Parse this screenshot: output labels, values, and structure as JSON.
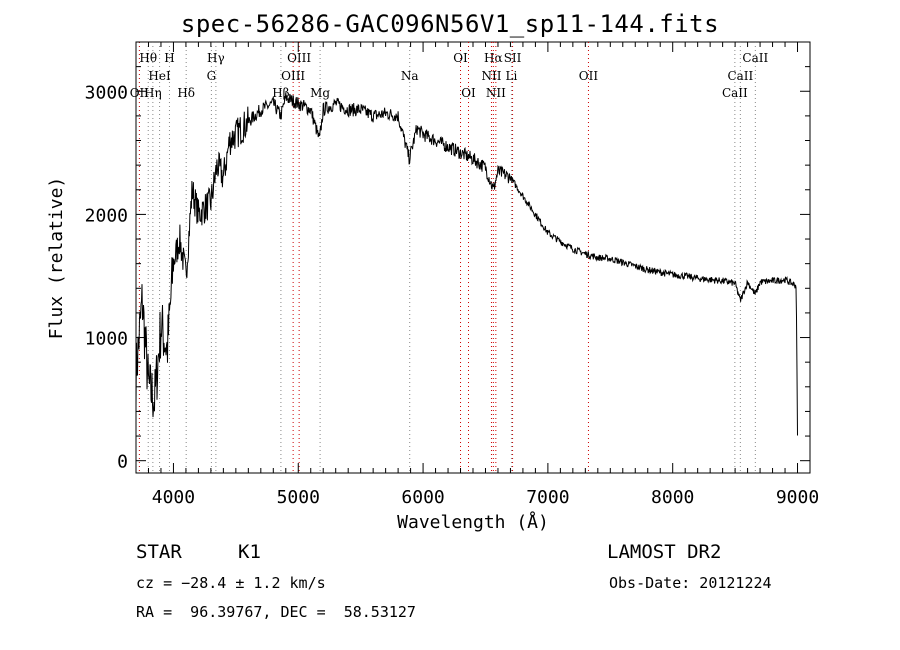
{
  "title": "spec-56286-GAC096N56V1_sp11-144.fits",
  "info": {
    "obj_class": "STAR",
    "subclass": "K1",
    "survey": "LAMOST DR2",
    "cz": "cz = −28.4 ± 1.2 km/s",
    "obs_date": "Obs-Date: 20121224",
    "coords": "RA =  96.39767, DEC =  58.53127"
  },
  "chart_data": {
    "type": "line",
    "title": "spec-56286-GAC096N56V1_sp11-144.fits",
    "xlabel": "Wavelength (Å)",
    "ylabel": "Flux (relative)",
    "xlim": [
      3700,
      9100
    ],
    "ylim": [
      -100,
      3400
    ],
    "x_ticks": [
      4000,
      5000,
      6000,
      7000,
      8000,
      9000
    ],
    "y_ticks": [
      0,
      1000,
      2000,
      3000
    ],
    "grid": false,
    "legend": "none",
    "series": [
      {
        "x": [
          3700,
          3750,
          3800,
          3850,
          3900,
          3950,
          4000,
          4050,
          4100,
          4150,
          4200,
          4250,
          4300,
          4350,
          4400,
          4450,
          4500,
          4600,
          4700,
          4800,
          4860,
          4900,
          5000,
          5100,
          5170,
          5200,
          5300,
          5400,
          5500,
          5600,
          5700,
          5800,
          5890,
          5950,
          6000,
          6100,
          6200,
          6300,
          6400,
          6500,
          6563,
          6600,
          6700,
          6800,
          6900,
          7000,
          7100,
          7200,
          7300,
          7400,
          7500,
          7600,
          7700,
          7800,
          7900,
          8000,
          8100,
          8200,
          8300,
          8400,
          8500,
          8542,
          8600,
          8662,
          8700,
          8800,
          8900,
          8990,
          9000
        ],
        "y": [
          700,
          1300,
          600,
          500,
          1100,
          900,
          1600,
          1800,
          1500,
          2200,
          2000,
          2050,
          2100,
          2400,
          2300,
          2600,
          2650,
          2750,
          2850,
          2900,
          2800,
          2950,
          2900,
          2850,
          2600,
          2850,
          2900,
          2850,
          2850,
          2800,
          2820,
          2800,
          2450,
          2700,
          2650,
          2600,
          2550,
          2500,
          2450,
          2380,
          2200,
          2350,
          2300,
          2150,
          2000,
          1850,
          1780,
          1720,
          1680,
          1650,
          1640,
          1610,
          1580,
          1550,
          1530,
          1510,
          1500,
          1480,
          1470,
          1460,
          1440,
          1300,
          1450,
          1350,
          1450,
          1460,
          1470,
          1420,
          200
        ]
      }
    ],
    "lines": [
      {
        "label": "Hθ",
        "wave": 3798,
        "row": 0,
        "color": "#888888"
      },
      {
        "label": "H",
        "wave": 3968,
        "row": 0,
        "color": "#888888"
      },
      {
        "label": "Hγ",
        "wave": 4340,
        "row": 0,
        "color": "#888888"
      },
      {
        "label": "OIII",
        "wave": 5007,
        "row": 0,
        "color": "#cc0000"
      },
      {
        "label": "OI",
        "wave": 6300,
        "row": 0,
        "color": "#cc0000"
      },
      {
        "label": "Hα",
        "wave": 6563,
        "row": 0,
        "color": "#cc0000"
      },
      {
        "label": "SII",
        "wave": 6717,
        "row": 0,
        "color": "#cc0000"
      },
      {
        "label": "CaII",
        "wave": 8662,
        "row": 0,
        "color": "#888888"
      },
      {
        "label": "HeI",
        "wave": 3889,
        "row": 1,
        "color": "#888888"
      },
      {
        "label": "G",
        "wave": 4304,
        "row": 1,
        "color": "#888888"
      },
      {
        "label": "OIII",
        "wave": 4959,
        "row": 1,
        "color": "#cc0000"
      },
      {
        "label": "Na",
        "wave": 5893,
        "row": 1,
        "color": "#888888"
      },
      {
        "label": "NII",
        "wave": 6548,
        "row": 1,
        "color": "#cc0000"
      },
      {
        "label": "Li",
        "wave": 6708,
        "row": 1,
        "color": "#888888"
      },
      {
        "label": "OII",
        "wave": 7325,
        "row": 1,
        "color": "#cc0000"
      },
      {
        "label": "CaII",
        "wave": 8542,
        "row": 1,
        "color": "#888888"
      },
      {
        "label": "OII",
        "wave": 3727,
        "row": 2,
        "color": "#cc0000"
      },
      {
        "label": "Hη",
        "wave": 3835,
        "row": 2,
        "color": "#888888"
      },
      {
        "label": "Hδ",
        "wave": 4102,
        "row": 2,
        "color": "#888888"
      },
      {
        "label": "Hβ",
        "wave": 4861,
        "row": 2,
        "color": "#888888"
      },
      {
        "label": "Mg",
        "wave": 5175,
        "row": 2,
        "color": "#888888"
      },
      {
        "label": "OI",
        "wave": 6364,
        "row": 2,
        "color": "#cc0000"
      },
      {
        "label": "NII",
        "wave": 6583,
        "row": 2,
        "color": "#cc0000"
      },
      {
        "label": "CaII",
        "wave": 8498,
        "row": 2,
        "color": "#888888"
      }
    ]
  }
}
